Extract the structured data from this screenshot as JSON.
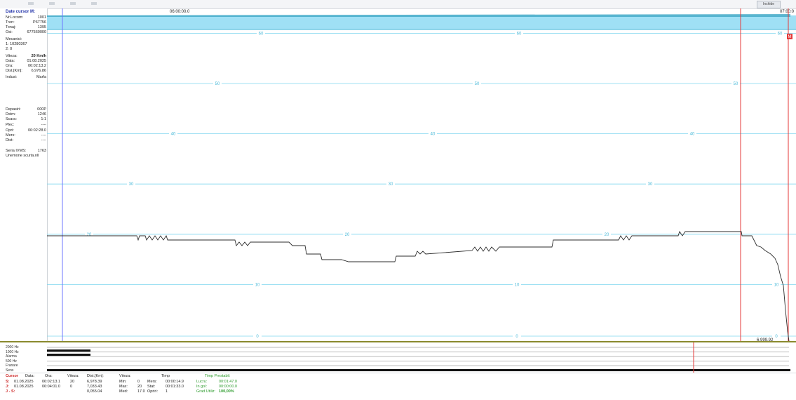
{
  "top": {
    "time_start": "06:00:00.0",
    "time_end": "07:00:0",
    "close_label": "Inchide"
  },
  "panel": {
    "title": "Date cursor M:",
    "rows": [
      {
        "label": "Nr.Locom:",
        "value": "1001"
      },
      {
        "label": "Tren:",
        "value": "P67756"
      },
      {
        "label": "Tonaj:",
        "value": "1395"
      },
      {
        "label": "Osi:",
        "value": "677560000"
      },
      {
        "label": "Mecanici:",
        "value": ""
      },
      {
        "label": "1: 10280367",
        "value": ""
      },
      {
        "label": "2: 0",
        "value": ""
      },
      {
        "label": "Viteza:",
        "value": "20 Km/h"
      },
      {
        "label": "Data:",
        "value": "01.08.2025"
      },
      {
        "label": "Ora:",
        "value": "06:02:13.2"
      },
      {
        "label": "Dist.[Km]:",
        "value": "6,976.86"
      },
      {
        "label": "Indusi:",
        "value": "Marfa"
      },
      {
        "label": "Depasiri:",
        "value": "000P"
      },
      {
        "label": "Dstm:",
        "value": "1246"
      },
      {
        "label": "Scara:",
        "value": "1:1"
      },
      {
        "label": "Plec:",
        "value": "----"
      },
      {
        "label": "Opri:",
        "value": "06:02:28.0"
      },
      {
        "label": "Mers:",
        "value": "----"
      },
      {
        "label": "Dist:",
        "value": "----"
      },
      {
        "label": "Seria IVMS:",
        "value": "1763"
      },
      {
        "label": "Unemone scurta.nll",
        "value": ""
      }
    ]
  },
  "chart": {
    "speed_levels": [
      60,
      50,
      40,
      30,
      20,
      10,
      0
    ],
    "bottom_right_readout": "6,999.92",
    "red_marker": "M"
  },
  "tracks": [
    "2000 Hz",
    "1000 Hz",
    "Alarma",
    "500 Hz",
    "Franare",
    "Sens"
  ],
  "table": {
    "headers": [
      "Cursor",
      "Data:",
      "Ora:",
      "Viteza:",
      "Dist.[Km]:",
      "Viteza:",
      "Timp",
      "Timp Prestabil:"
    ],
    "rows": [
      {
        "id": "S:",
        "date": "01.08.2025",
        "time": "06:02:13.1",
        "speed": "20",
        "dist": "6,978.39",
        "k1": "Min:",
        "v1": "0",
        "k2": "Mers:",
        "v2": "00:00:14.9",
        "k3": "Lucru:",
        "v3": "00:01:47.0"
      },
      {
        "id": "J:",
        "date": "01.08.2025",
        "time": "06:04:01.0",
        "speed": "0",
        "dist": "7,033.43",
        "k1": "Max:",
        "v1": "20",
        "k2": "Stat:",
        "v2": "00:01:33.0",
        "k3": "In gol:",
        "v3": "00:00:00.0"
      },
      {
        "id": "J - S:",
        "date": "",
        "time": "",
        "speed": "",
        "dist": "0,055.04",
        "k1": "Med:",
        "v1": "17.0",
        "k2": "Opriri:",
        "v2": "1",
        "k3": "Grad Utiliz:",
        "v3": "100,00%"
      }
    ]
  },
  "colors": {
    "grid": "#7fd6ef",
    "band": "#9fe0f5",
    "cursor_blue": "#6c74ff",
    "cursor_red": "#e53a3a",
    "trace": "#2b2b2b"
  }
}
